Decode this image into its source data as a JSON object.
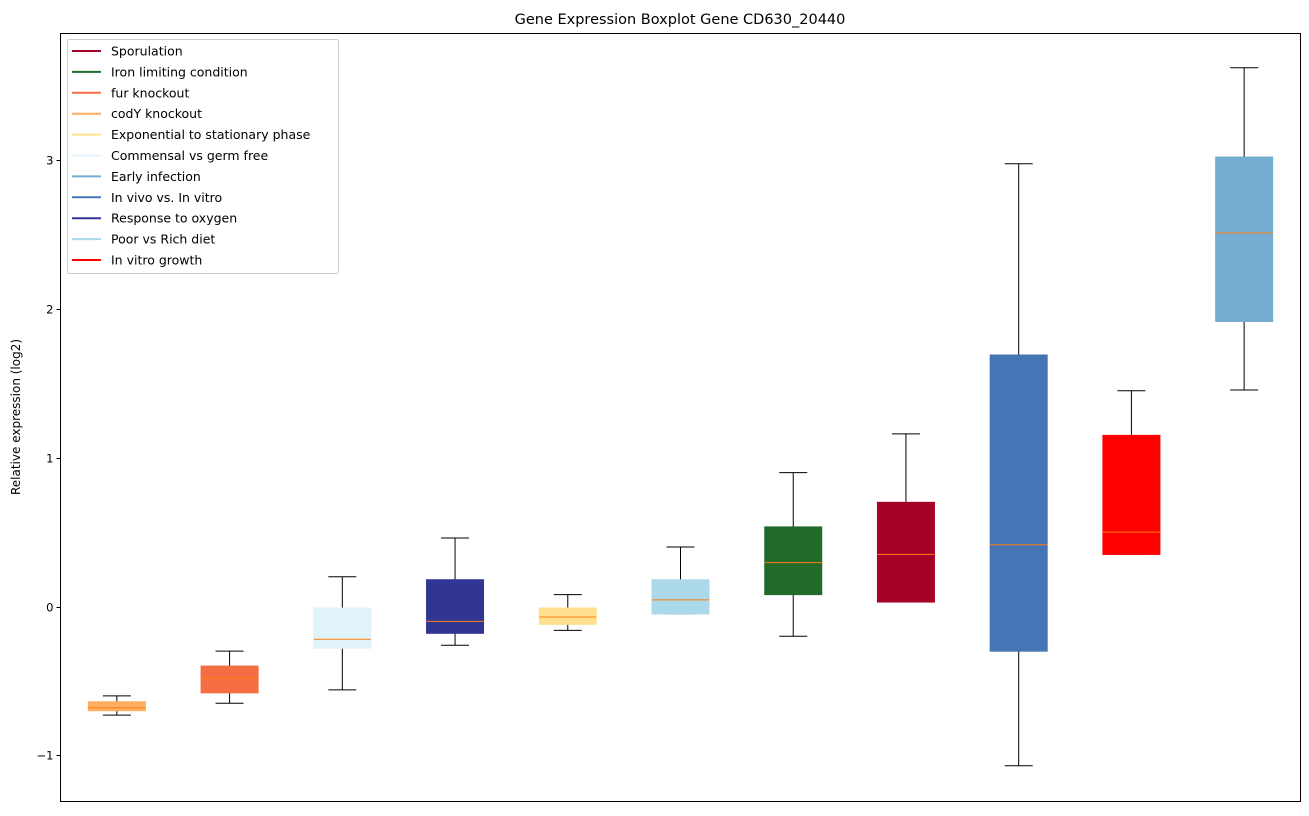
{
  "chart_data": {
    "type": "boxplot",
    "title": "Gene Expression Boxplot Gene CD630_20440",
    "xlabel": "",
    "ylabel": "Relative expression (log2)",
    "ylim": [
      -1.31,
      3.85
    ],
    "yticks": [
      -1,
      0,
      1,
      2,
      3
    ],
    "ytick_labels": [
      "−1",
      "0",
      "1",
      "2",
      "3"
    ],
    "grid": false,
    "legend_position": "top-left",
    "legend": [
      {
        "label": "Sporulation",
        "color": "#a50026"
      },
      {
        "label": "Iron limiting condition",
        "color": "#226b2b"
      },
      {
        "label": "fur knockout",
        "color": "#f46d43"
      },
      {
        "label": "codY knockout",
        "color": "#fdae61"
      },
      {
        "label": "Exponential to stationary phase",
        "color": "#fee090"
      },
      {
        "label": "Commensal vs germ free",
        "color": "#e0f3f8"
      },
      {
        "label": "Early infection",
        "color": "#74add1"
      },
      {
        "label": "In vivo vs. In vitro",
        "color": "#4575b4"
      },
      {
        "label": "Response to oxygen",
        "color": "#313695"
      },
      {
        "label": "Poor vs Rich diet",
        "color": "#abd9e9"
      },
      {
        "label": "In vitro growth",
        "color": "#ff0000"
      }
    ],
    "median_color": "#ff7f0e",
    "boxes": [
      {
        "group": "codY knockout",
        "color": "#fdae61",
        "whislo": -0.73,
        "q1": -0.7,
        "med": -0.68,
        "q3": -0.64,
        "whishi": -0.6
      },
      {
        "group": "fur knockout",
        "color": "#f46d43",
        "whislo": -0.65,
        "q1": -0.58,
        "med": -0.48,
        "q3": -0.4,
        "whishi": -0.3
      },
      {
        "group": "Commensal vs germ free",
        "color": "#e0f3f8",
        "whislo": -0.56,
        "q1": -0.28,
        "med": -0.22,
        "q3": -0.01,
        "whishi": 0.2
      },
      {
        "group": "Response to oxygen",
        "color": "#313695",
        "whislo": -0.26,
        "q1": -0.18,
        "med": -0.1,
        "q3": 0.18,
        "whishi": 0.46
      },
      {
        "group": "Exponential to stationary phase",
        "color": "#fee090",
        "whislo": -0.16,
        "q1": -0.12,
        "med": -0.07,
        "q3": -0.01,
        "whishi": 0.08
      },
      {
        "group": "Poor vs Rich diet",
        "color": "#abd9e9",
        "whislo": -0.05,
        "q1": -0.05,
        "med": 0.045,
        "q3": 0.18,
        "whishi": 0.4
      },
      {
        "group": "Iron limiting condition",
        "color": "#226b2b",
        "whislo": -0.2,
        "q1": 0.08,
        "med": 0.295,
        "q3": 0.535,
        "whishi": 0.9
      },
      {
        "group": "Sporulation",
        "color": "#a50026",
        "whislo": 0.03,
        "q1": 0.03,
        "med": 0.35,
        "q3": 0.7,
        "whishi": 1.16
      },
      {
        "group": "In vivo vs. In vitro",
        "color": "#4575b4",
        "whislo": -1.07,
        "q1": -0.3,
        "med": 0.415,
        "q3": 1.69,
        "whishi": 2.975
      },
      {
        "group": "In vitro growth",
        "color": "#ff0000",
        "whislo": 0.35,
        "q1": 0.35,
        "med": 0.5,
        "q3": 1.15,
        "whishi": 1.45
      },
      {
        "group": "Early infection",
        "color": "#74add1",
        "whislo": 1.455,
        "q1": 1.915,
        "med": 2.51,
        "q3": 3.02,
        "whishi": 3.62
      }
    ]
  }
}
